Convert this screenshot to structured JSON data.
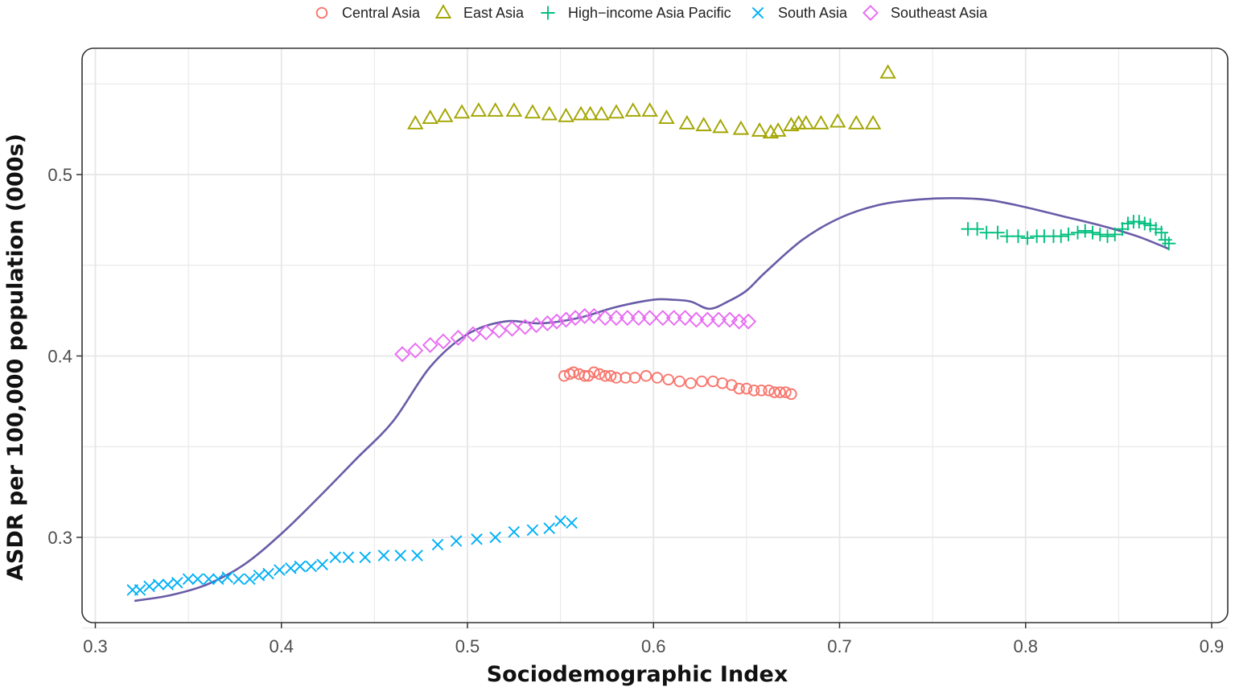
{
  "chart_data": {
    "type": "scatter",
    "xlabel": "Sociodemographic Index",
    "ylabel": "ASDR per 100,000 population (000s)",
    "xlim": [
      0.3,
      0.9
    ],
    "ylim": [
      0.25,
      0.56
    ],
    "x_ticks": [
      0.3,
      0.4,
      0.5,
      0.6,
      0.7,
      0.8,
      0.9
    ],
    "x_tick_labels": [
      "0.3",
      "0.4",
      "0.5",
      "0.6",
      "0.7",
      "0.8",
      "0.9"
    ],
    "y_ticks": [
      0.3,
      0.4,
      0.5
    ],
    "y_tick_labels": [
      "0.3",
      "0.4",
      "0.5"
    ],
    "grid": true,
    "legend_position": "top",
    "series": [
      {
        "name": "Central Asia",
        "marker": "circle",
        "color": "#F8766D",
        "x": [
          0.552,
          0.555,
          0.557,
          0.56,
          0.563,
          0.565,
          0.568,
          0.571,
          0.574,
          0.577,
          0.58,
          0.585,
          0.59,
          0.596,
          0.602,
          0.608,
          0.614,
          0.62,
          0.626,
          0.632,
          0.637,
          0.642,
          0.646,
          0.65,
          0.654,
          0.658,
          0.662,
          0.665,
          0.668,
          0.671,
          0.674
        ],
        "y": [
          0.389,
          0.39,
          0.391,
          0.39,
          0.389,
          0.389,
          0.391,
          0.39,
          0.389,
          0.389,
          0.388,
          0.388,
          0.388,
          0.389,
          0.388,
          0.387,
          0.386,
          0.385,
          0.386,
          0.386,
          0.385,
          0.384,
          0.382,
          0.382,
          0.381,
          0.381,
          0.381,
          0.38,
          0.38,
          0.38,
          0.379
        ]
      },
      {
        "name": "East Asia",
        "marker": "triangle",
        "color": "#A3A500",
        "x": [
          0.472,
          0.48,
          0.488,
          0.497,
          0.506,
          0.515,
          0.525,
          0.535,
          0.544,
          0.553,
          0.561,
          0.566,
          0.572,
          0.58,
          0.589,
          0.598,
          0.607,
          0.618,
          0.627,
          0.636,
          0.647,
          0.657,
          0.663,
          0.667,
          0.674,
          0.678,
          0.682,
          0.69,
          0.699,
          0.709,
          0.718,
          0.726
        ],
        "y": [
          0.528,
          0.531,
          0.532,
          0.534,
          0.535,
          0.535,
          0.535,
          0.534,
          0.533,
          0.532,
          0.533,
          0.533,
          0.533,
          0.534,
          0.535,
          0.535,
          0.531,
          0.528,
          0.527,
          0.526,
          0.525,
          0.524,
          0.523,
          0.524,
          0.527,
          0.528,
          0.528,
          0.528,
          0.529,
          0.528,
          0.528,
          0.556
        ]
      },
      {
        "name": "High−income Asia Pacific",
        "marker": "plus",
        "color": "#00BF7D",
        "x": [
          0.769,
          0.774,
          0.779,
          0.785,
          0.79,
          0.796,
          0.801,
          0.806,
          0.81,
          0.815,
          0.819,
          0.823,
          0.828,
          0.832,
          0.836,
          0.84,
          0.844,
          0.848,
          0.852,
          0.855,
          0.858,
          0.861,
          0.864,
          0.867,
          0.87,
          0.873,
          0.875,
          0.877
        ],
        "y": [
          0.47,
          0.47,
          0.468,
          0.468,
          0.466,
          0.466,
          0.465,
          0.466,
          0.466,
          0.466,
          0.466,
          0.467,
          0.468,
          0.469,
          0.468,
          0.467,
          0.466,
          0.467,
          0.47,
          0.473,
          0.474,
          0.474,
          0.473,
          0.472,
          0.47,
          0.468,
          0.464,
          0.462
        ]
      },
      {
        "name": "South Asia",
        "marker": "x",
        "color": "#00B0F6",
        "x": [
          0.32,
          0.324,
          0.329,
          0.334,
          0.339,
          0.344,
          0.35,
          0.355,
          0.361,
          0.366,
          0.371,
          0.377,
          0.383,
          0.388,
          0.393,
          0.399,
          0.405,
          0.41,
          0.416,
          0.422,
          0.429,
          0.436,
          0.445,
          0.455,
          0.464,
          0.473,
          0.484,
          0.494,
          0.505,
          0.515,
          0.525,
          0.535,
          0.544,
          0.55,
          0.556
        ],
        "y": [
          0.271,
          0.271,
          0.273,
          0.274,
          0.274,
          0.275,
          0.277,
          0.277,
          0.277,
          0.277,
          0.278,
          0.277,
          0.277,
          0.279,
          0.28,
          0.282,
          0.283,
          0.284,
          0.284,
          0.285,
          0.289,
          0.289,
          0.289,
          0.29,
          0.29,
          0.29,
          0.296,
          0.298,
          0.299,
          0.3,
          0.303,
          0.304,
          0.305,
          0.309,
          0.308
        ]
      },
      {
        "name": "Southeast Asia",
        "marker": "diamond",
        "color": "#E76BF3",
        "x": [
          0.465,
          0.472,
          0.48,
          0.487,
          0.495,
          0.503,
          0.51,
          0.517,
          0.524,
          0.531,
          0.537,
          0.543,
          0.548,
          0.553,
          0.558,
          0.563,
          0.568,
          0.574,
          0.58,
          0.586,
          0.592,
          0.598,
          0.605,
          0.611,
          0.617,
          0.623,
          0.629,
          0.635,
          0.641,
          0.646,
          0.651
        ],
        "y": [
          0.401,
          0.403,
          0.406,
          0.408,
          0.41,
          0.412,
          0.413,
          0.414,
          0.415,
          0.416,
          0.417,
          0.418,
          0.419,
          0.42,
          0.421,
          0.422,
          0.422,
          0.421,
          0.421,
          0.421,
          0.421,
          0.421,
          0.421,
          0.421,
          0.421,
          0.42,
          0.42,
          0.42,
          0.42,
          0.419,
          0.419
        ]
      }
    ],
    "trend": {
      "type": "line",
      "color": "#6A5BA7",
      "x": [
        0.321,
        0.34,
        0.36,
        0.38,
        0.4,
        0.42,
        0.44,
        0.46,
        0.48,
        0.5,
        0.52,
        0.54,
        0.56,
        0.58,
        0.6,
        0.61,
        0.62,
        0.63,
        0.64,
        0.65,
        0.66,
        0.68,
        0.7,
        0.72,
        0.74,
        0.76,
        0.78,
        0.8,
        0.82,
        0.84,
        0.86,
        0.877
      ],
      "y": [
        0.265,
        0.268,
        0.274,
        0.285,
        0.302,
        0.322,
        0.343,
        0.364,
        0.394,
        0.412,
        0.419,
        0.418,
        0.421,
        0.427,
        0.431,
        0.431,
        0.43,
        0.426,
        0.43,
        0.436,
        0.446,
        0.464,
        0.476,
        0.483,
        0.486,
        0.487,
        0.486,
        0.482,
        0.477,
        0.472,
        0.466,
        0.459
      ]
    }
  }
}
